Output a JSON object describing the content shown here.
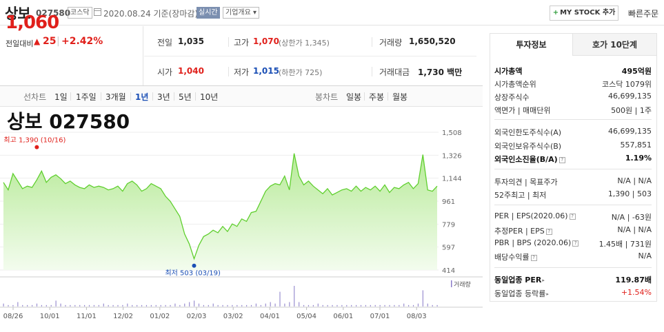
{
  "header": {
    "stock_name": "상보",
    "stock_code": "027580",
    "market_badge": "코스닥",
    "date_text": "2020.08.24  기준(장마감)",
    "realtime_label": "실시간",
    "company_overview_label": "기업개요 ▾",
    "mystock_plus": "+",
    "mystock_label": "MY STOCK 추가",
    "quick_order_label": "빠른주문"
  },
  "price": {
    "current": "1,060",
    "change_label": "전일대비",
    "change_arrow": "▲",
    "change_amount": "25",
    "change_separator": "|",
    "change_percent": "+2.42%"
  },
  "info": {
    "prev_close_label": "전일",
    "prev_close": "1,035",
    "high_label": "고가",
    "high": "1,070",
    "upper_limit": "(상한가 1,345)",
    "volume_label": "거래량",
    "volume": "1,650,520",
    "open_label": "시가",
    "open": "1,040",
    "low_label": "저가",
    "low": "1,015",
    "lower_limit": "(하한가 725)",
    "amount_label": "거래대금",
    "amount": "1,730 백만"
  },
  "chart_tabs": {
    "line_label": "선차트",
    "line_periods": [
      "1일",
      "1주일",
      "3개월",
      "1년",
      "3년",
      "5년",
      "10년"
    ],
    "active_period": "1년",
    "candle_label": "봉차트",
    "candle_periods": [
      "일봉",
      "주봉",
      "월봉"
    ]
  },
  "chart_data": {
    "type": "area",
    "title": "상보  027580",
    "x_tick_labels": [
      "08/26",
      "10/01",
      "11/01",
      "12/02",
      "01/02",
      "02/03",
      "03/02",
      "04/01",
      "05/04",
      "06/01",
      "07/01",
      "08/03"
    ],
    "y_tick_labels": [
      "1,508",
      "1,326",
      "1,144",
      "961",
      "779",
      "597",
      "414"
    ],
    "ylim": [
      414,
      1508
    ],
    "high_annotation": "최고 1,390 (10/16)",
    "low_annotation": "최저 503 (03/19)",
    "volume_legend": "거래량",
    "series": [
      {
        "values": [
          1110,
          1050,
          1180,
          1120,
          1060,
          1080,
          1070,
          1130,
          1200,
          1110,
          1150,
          1170,
          1140,
          1100,
          1120,
          1090,
          1070,
          1060,
          1090,
          1070,
          1080,
          1070,
          1050,
          1060,
          1080,
          1040,
          1100,
          1120,
          1090,
          1040,
          1060,
          1100,
          1080,
          1060,
          1000,
          960,
          900,
          840,
          700,
          620,
          503,
          610,
          680,
          700,
          730,
          710,
          760,
          720,
          780,
          760,
          820,
          800,
          870,
          880,
          960,
          1040,
          1080,
          1100,
          1090,
          1160,
          1050,
          1340,
          1160,
          1090,
          1120,
          1080,
          1050,
          1020,
          1060,
          1010,
          1030,
          1050,
          1060,
          1040,
          1080,
          1040,
          1070,
          1050,
          1080,
          1040,
          1090,
          1030,
          1070,
          1060,
          1090,
          1110,
          1060,
          1100,
          1330,
          1050,
          1040,
          1080
        ]
      }
    ],
    "volume": [
      2,
      1,
      1,
      3,
      1,
      1,
      1,
      2,
      1,
      1,
      1,
      4,
      2,
      1,
      1,
      1,
      1,
      1,
      1,
      1,
      1,
      2,
      1,
      1,
      1,
      1,
      2,
      1,
      1,
      1,
      1,
      1,
      1,
      1,
      1,
      1,
      2,
      1,
      2,
      3,
      4,
      2,
      1,
      1,
      2,
      1,
      1,
      1,
      1,
      1,
      1,
      1,
      1,
      2,
      1,
      2,
      3,
      2,
      10,
      2,
      3,
      14,
      3,
      1,
      1,
      1,
      2,
      1,
      1,
      1,
      1,
      1,
      1,
      1,
      1,
      1,
      1,
      1,
      1,
      1,
      1,
      1,
      1,
      1,
      2,
      1,
      1,
      2,
      11,
      2,
      1,
      1
    ]
  },
  "right_panel": {
    "tab_invest": "투자정보",
    "tab_quote": "호가 10단계",
    "market_cap_label": "시가총액",
    "market_cap": "495억원",
    "cap_rank_label": "시가총액순위",
    "cap_rank": "코스닥 1079위",
    "shares_label": "상장주식수",
    "shares": "46,699,135",
    "par_label": "액면가 | 매매단위",
    "par": "500원 | 1주",
    "foreign_limit_label": "외국인한도주식수(A)",
    "foreign_limit": "46,699,135",
    "foreign_hold_label": "외국인보유주식수(B)",
    "foreign_hold": "557,851",
    "foreign_ratio_label": "외국인소진율(B/A)",
    "foreign_ratio": "1.19%",
    "opinion_label": "투자의견 | 목표주가",
    "opinion": "N/A | N/A",
    "week52_label": "52주최고 | 최저",
    "week52": "1,390 | 503",
    "per_label": "PER | EPS(2020.06)",
    "per": "N/A | -63원",
    "est_per_label": "추정PER | EPS",
    "est_per": "N/A | N/A",
    "pbr_label": "PBR | BPS (2020.06)",
    "pbr": "1.45배 | 731원",
    "dividend_label": "배당수익률",
    "dividend": "N/A",
    "sector_per_label": "동일업종 PER",
    "sector_per": "119.87배",
    "sector_change_label": "동일업종 등락률",
    "sector_change": "+1.54%"
  }
}
